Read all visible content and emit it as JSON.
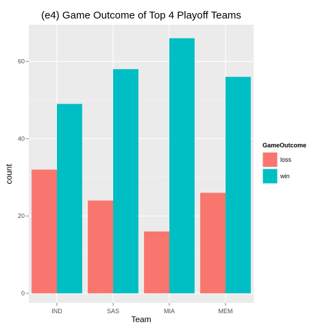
{
  "chart_data": {
    "type": "bar",
    "title": "(e4) Game Outcome of Top 4 Playoff Teams",
    "xlabel": "Team",
    "ylabel": "count",
    "categories": [
      "IND",
      "SAS",
      "MIA",
      "MEM"
    ],
    "series": [
      {
        "name": "loss",
        "values": [
          32,
          24,
          16,
          26
        ],
        "color": "#F8766D"
      },
      {
        "name": "win",
        "values": [
          49,
          58,
          66,
          56
        ],
        "color": "#00BFC4"
      }
    ],
    "ylim": [
      -2.5,
      69.5
    ],
    "yticks": [
      0,
      20,
      40,
      60
    ],
    "legend": {
      "title": "GameOutcome",
      "position": "right"
    },
    "grid": true,
    "panel_color": "#EBEBEB"
  }
}
